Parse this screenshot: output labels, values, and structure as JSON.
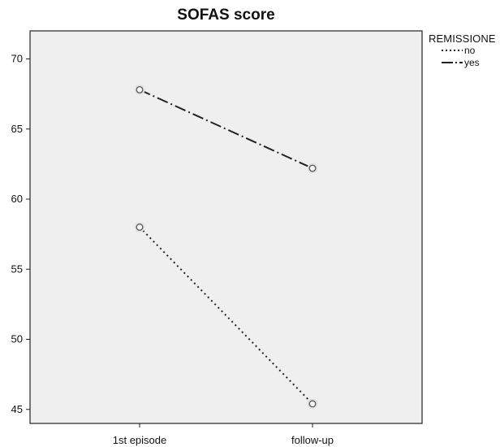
{
  "chart_data": {
    "type": "line",
    "title": "SOFAS score",
    "xlabel": "",
    "ylabel": "",
    "categories": [
      "1st episode",
      "follow-up"
    ],
    "ylim": [
      44,
      72
    ],
    "yticks": [
      45,
      50,
      55,
      60,
      65,
      70
    ],
    "series": [
      {
        "name": "no",
        "values": [
          58.0,
          45.4
        ],
        "line_style": "dotted",
        "color": "#222222"
      },
      {
        "name": "yes",
        "values": [
          67.8,
          62.2
        ],
        "line_style": "dash-dot",
        "color": "#222222"
      }
    ],
    "legend": {
      "title": "REMISSIONE",
      "position": "top-right, outside plot"
    },
    "grid": false,
    "plot_background": "#efefef"
  }
}
